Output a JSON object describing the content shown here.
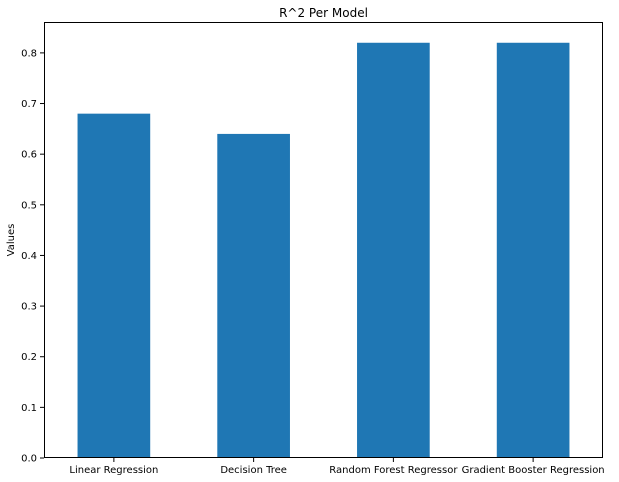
{
  "chart_data": {
    "type": "bar",
    "title": "R^2 Per Model",
    "xlabel": "",
    "ylabel": "Values",
    "categories": [
      "Linear Regression",
      "Decision Tree",
      "Random Forest Regressor",
      "Gradient Booster Regression"
    ],
    "values": [
      0.68,
      0.64,
      0.82,
      0.82
    ],
    "ylim": [
      0,
      0.861
    ],
    "yticks": [
      0.0,
      0.1,
      0.2,
      0.3,
      0.4,
      0.5,
      0.6,
      0.7,
      0.8
    ],
    "ytick_labels": [
      "0.0",
      "0.1",
      "0.2",
      "0.3",
      "0.4",
      "0.5",
      "0.6",
      "0.7",
      "0.8"
    ],
    "bar_color": "#1f77b4",
    "grid": false,
    "legend": "none"
  }
}
